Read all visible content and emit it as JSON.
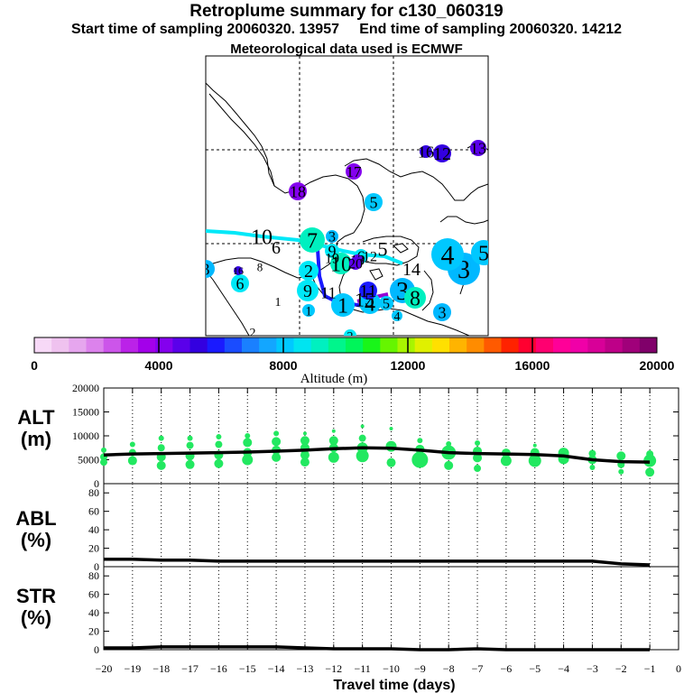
{
  "header": {
    "title": "Retroplume summary for c130_060319",
    "sampling_line": "Start time of sampling 20060320. 13957     End time of sampling 20060320. 14212",
    "met_line": "Meteorological data used is ECMWF"
  },
  "colorbar": {
    "label": "Altitude (m)",
    "ticks": [
      "0",
      "4000",
      "8000",
      "12000",
      "16000",
      "20000"
    ],
    "colors": [
      "#f7d9f7",
      "#efc2ef",
      "#e6a6ee",
      "#dc82ec",
      "#cc55ea",
      "#bb22e8",
      "#a300ea",
      "#8400ee",
      "#5a00ea",
      "#3300e0",
      "#1a1aff",
      "#1a4cff",
      "#1a80ff",
      "#13a6ff",
      "#00c8ff",
      "#00e4f0",
      "#00f0c0",
      "#00f58c",
      "#00f55a",
      "#19f519",
      "#66f500",
      "#a8f500",
      "#e0f000",
      "#ffe000",
      "#ffb400",
      "#ff8c00",
      "#ff5a00",
      "#ff2200",
      "#ff0030",
      "#ff0070",
      "#ff0098",
      "#f000a8",
      "#d80098",
      "#be0088",
      "#a0007a",
      "#80006a"
    ]
  },
  "map": {
    "trajectory_colors": [
      "#00e8f8",
      "#1a1aff",
      "#9400d3"
    ],
    "clusters": [
      {
        "label": "1",
        "color": "#00c8ff"
      },
      {
        "label": "2",
        "color": "#00e8f8"
      },
      {
        "label": "3",
        "color": "#00b8ff"
      },
      {
        "label": "4",
        "color": "#00c8ff"
      },
      {
        "label": "5",
        "color": "#00c8ff"
      },
      {
        "label": "6",
        "color": "#00e8f8"
      },
      {
        "label": "7",
        "color": "#00f0c0"
      },
      {
        "label": "8",
        "color": "#00f0c0"
      },
      {
        "label": "9",
        "color": "#00e8f8"
      },
      {
        "label": "10",
        "color": "#00f0c0"
      },
      {
        "label": "11",
        "color": "#1a1aff"
      },
      {
        "label": "12",
        "color": "#3300e0"
      },
      {
        "label": "13",
        "color": "#5a00ea"
      },
      {
        "label": "14",
        "color": "#00c8ff"
      },
      {
        "label": "15",
        "color": "#8400ee"
      },
      {
        "label": "16",
        "color": "#3300e0"
      },
      {
        "label": "17",
        "color": "#8400ee"
      },
      {
        "label": "18",
        "color": "#8400ee"
      },
      {
        "label": "19",
        "color": "#00e8f8"
      },
      {
        "label": "20",
        "color": "#5a00ea"
      }
    ]
  },
  "chart_data": [
    {
      "type": "scatter",
      "panel": "ALT",
      "ylabel_lines": [
        "ALT",
        "(m)"
      ],
      "ylim": [
        0,
        20000
      ],
      "yticks": [
        0,
        5000,
        10000,
        15000,
        20000
      ],
      "xlim": [
        -20,
        0
      ],
      "marker_color": "#22e860",
      "median_line_color": "#000000",
      "median_x": [
        -20,
        -19,
        -18,
        -17,
        -16,
        -15,
        -14,
        -13,
        -12,
        -11,
        -10,
        -9,
        -8,
        -7,
        -6,
        -5,
        -4,
        -3,
        -2,
        -1
      ],
      "median_y": [
        6000,
        6200,
        6300,
        6400,
        6500,
        6600,
        6800,
        7000,
        7300,
        7500,
        7400,
        7000,
        6500,
        6300,
        6200,
        6100,
        5800,
        5000,
        4600,
        4500
      ],
      "points": [
        {
          "x": -20,
          "y": 4500,
          "r": 4
        },
        {
          "x": -20,
          "y": 5600,
          "r": 4
        },
        {
          "x": -20,
          "y": 7000,
          "r": 3
        },
        {
          "x": -19,
          "y": 4800,
          "r": 5
        },
        {
          "x": -19,
          "y": 6500,
          "r": 4
        },
        {
          "x": -19,
          "y": 8200,
          "r": 3
        },
        {
          "x": -18,
          "y": 3800,
          "r": 5
        },
        {
          "x": -18,
          "y": 5600,
          "r": 5
        },
        {
          "x": -18,
          "y": 7500,
          "r": 4
        },
        {
          "x": -18,
          "y": 9500,
          "r": 3
        },
        {
          "x": -17,
          "y": 4000,
          "r": 5
        },
        {
          "x": -17,
          "y": 5800,
          "r": 5
        },
        {
          "x": -17,
          "y": 8000,
          "r": 4
        },
        {
          "x": -17,
          "y": 9500,
          "r": 3
        },
        {
          "x": -16,
          "y": 4200,
          "r": 5
        },
        {
          "x": -16,
          "y": 6000,
          "r": 5
        },
        {
          "x": -16,
          "y": 8200,
          "r": 4
        },
        {
          "x": -16,
          "y": 9800,
          "r": 3
        },
        {
          "x": -15,
          "y": 5000,
          "r": 6
        },
        {
          "x": -15,
          "y": 6500,
          "r": 5
        },
        {
          "x": -15,
          "y": 8600,
          "r": 5
        },
        {
          "x": -15,
          "y": 10000,
          "r": 3
        },
        {
          "x": -14,
          "y": 5500,
          "r": 5
        },
        {
          "x": -14,
          "y": 7000,
          "r": 5
        },
        {
          "x": -14,
          "y": 8800,
          "r": 5
        },
        {
          "x": -14,
          "y": 10500,
          "r": 3
        },
        {
          "x": -13,
          "y": 4500,
          "r": 5
        },
        {
          "x": -13,
          "y": 6000,
          "r": 5
        },
        {
          "x": -13,
          "y": 7500,
          "r": 5
        },
        {
          "x": -13,
          "y": 9000,
          "r": 5
        },
        {
          "x": -13,
          "y": 10500,
          "r": 2
        },
        {
          "x": -12,
          "y": 5500,
          "r": 6
        },
        {
          "x": -12,
          "y": 7500,
          "r": 5
        },
        {
          "x": -12,
          "y": 9000,
          "r": 5
        },
        {
          "x": -12,
          "y": 11000,
          "r": 2
        },
        {
          "x": -11,
          "y": 5800,
          "r": 7
        },
        {
          "x": -11,
          "y": 7500,
          "r": 6
        },
        {
          "x": -11,
          "y": 9500,
          "r": 4
        },
        {
          "x": -11,
          "y": 12000,
          "r": 2
        },
        {
          "x": -10,
          "y": 4400,
          "r": 5
        },
        {
          "x": -10,
          "y": 7800,
          "r": 6
        },
        {
          "x": -10,
          "y": 11500,
          "r": 2
        },
        {
          "x": -9,
          "y": 5000,
          "r": 9
        },
        {
          "x": -9,
          "y": 7200,
          "r": 5
        },
        {
          "x": -9,
          "y": 9000,
          "r": 3
        },
        {
          "x": -8,
          "y": 3800,
          "r": 5
        },
        {
          "x": -8,
          "y": 6500,
          "r": 8
        },
        {
          "x": -8,
          "y": 8300,
          "r": 3
        },
        {
          "x": -7,
          "y": 3200,
          "r": 4
        },
        {
          "x": -7,
          "y": 5400,
          "r": 5
        },
        {
          "x": -7,
          "y": 6800,
          "r": 5
        },
        {
          "x": -7,
          "y": 8500,
          "r": 3
        },
        {
          "x": -6,
          "y": 4800,
          "r": 6
        },
        {
          "x": -6,
          "y": 6400,
          "r": 5
        },
        {
          "x": -5,
          "y": 4800,
          "r": 7
        },
        {
          "x": -5,
          "y": 6500,
          "r": 5
        },
        {
          "x": -5,
          "y": 8000,
          "r": 2
        },
        {
          "x": -4,
          "y": 5200,
          "r": 6
        },
        {
          "x": -4,
          "y": 6400,
          "r": 6
        },
        {
          "x": -3,
          "y": 3400,
          "r": 3
        },
        {
          "x": -3,
          "y": 5000,
          "r": 5
        },
        {
          "x": -3,
          "y": 6300,
          "r": 4
        },
        {
          "x": -2,
          "y": 2500,
          "r": 3
        },
        {
          "x": -2,
          "y": 4000,
          "r": 4
        },
        {
          "x": -2,
          "y": 5800,
          "r": 5
        },
        {
          "x": -1,
          "y": 2400,
          "r": 5
        },
        {
          "x": -1,
          "y": 4800,
          "r": 7
        },
        {
          "x": -1,
          "y": 6200,
          "r": 4
        }
      ]
    },
    {
      "type": "line",
      "panel": "ABL",
      "ylabel_lines": [
        "ABL",
        "(%)"
      ],
      "ylim": [
        0,
        90
      ],
      "yticks": [
        0,
        20,
        40,
        60,
        80
      ],
      "xlim": [
        -20,
        0
      ],
      "x": [
        -20,
        -19,
        -18,
        -17,
        -16,
        -15,
        -14,
        -13,
        -12,
        -11,
        -10,
        -9,
        -8,
        -7,
        -6,
        -5,
        -4,
        -3,
        -2,
        -1
      ],
      "y": [
        8,
        8,
        7,
        7,
        6,
        6,
        6,
        6,
        6,
        6,
        6,
        6,
        6,
        6,
        6,
        6,
        6,
        6,
        3,
        2
      ]
    },
    {
      "type": "line",
      "panel": "STR",
      "ylabel_lines": [
        "STR",
        "(%)"
      ],
      "ylim": [
        0,
        90
      ],
      "yticks": [
        0,
        20,
        40,
        60,
        80
      ],
      "xlim": [
        -20,
        0
      ],
      "xticks": [
        -20,
        -19,
        -18,
        -17,
        -16,
        -15,
        -14,
        -13,
        -12,
        -11,
        -10,
        -9,
        -8,
        -7,
        -6,
        -5,
        -4,
        -3,
        -2,
        -1,
        0
      ],
      "xlabel": "Travel time (days)",
      "x": [
        -20,
        -19,
        -18,
        -17,
        -16,
        -15,
        -14,
        -13,
        -12,
        -11,
        -10,
        -9,
        -8,
        -7,
        -6,
        -5,
        -4,
        -3,
        -2,
        -1
      ],
      "y": [
        2,
        2,
        3,
        3,
        3,
        3,
        3,
        2,
        1,
        1,
        1,
        0,
        0,
        1,
        0,
        0,
        0,
        0,
        0,
        0
      ]
    }
  ]
}
